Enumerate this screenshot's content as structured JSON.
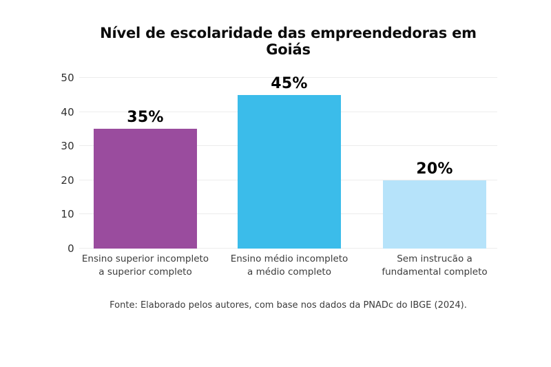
{
  "chart_data": {
    "type": "bar",
    "title": "Nível de escolaridade das empreendedoras em Goiás",
    "categories": [
      "Ensino superior incompleto a superior completo",
      "Ensino médio incompleto a médio completo",
      "Sem instrucão a fundamental completo"
    ],
    "category_lines": [
      [
        "Ensino superior incompleto",
        "a superior completo"
      ],
      [
        "Ensino médio incompleto",
        "a médio completo"
      ],
      [
        "Sem instrucão a",
        "fundamental completo"
      ]
    ],
    "values": [
      35,
      45,
      20
    ],
    "value_labels": [
      "35%",
      "45%",
      "20%"
    ],
    "bar_colors": [
      "#9A4C9E",
      "#3BBCEA",
      "#B6E3FA"
    ],
    "yticks": [
      0,
      10,
      20,
      30,
      40,
      50
    ],
    "ylim": [
      0,
      50
    ],
    "xlabel": "",
    "ylabel": "",
    "grid": "horizontal",
    "legend": "none",
    "gridline_color": "#ECECEC",
    "text_color": "#3B3B3B",
    "title_color": "#0B0B0B",
    "background_color": "#FFFFFF",
    "source": "Fonte: Elaborado pelos autores, com base nos dados da PNADc do IBGE (2024)."
  }
}
